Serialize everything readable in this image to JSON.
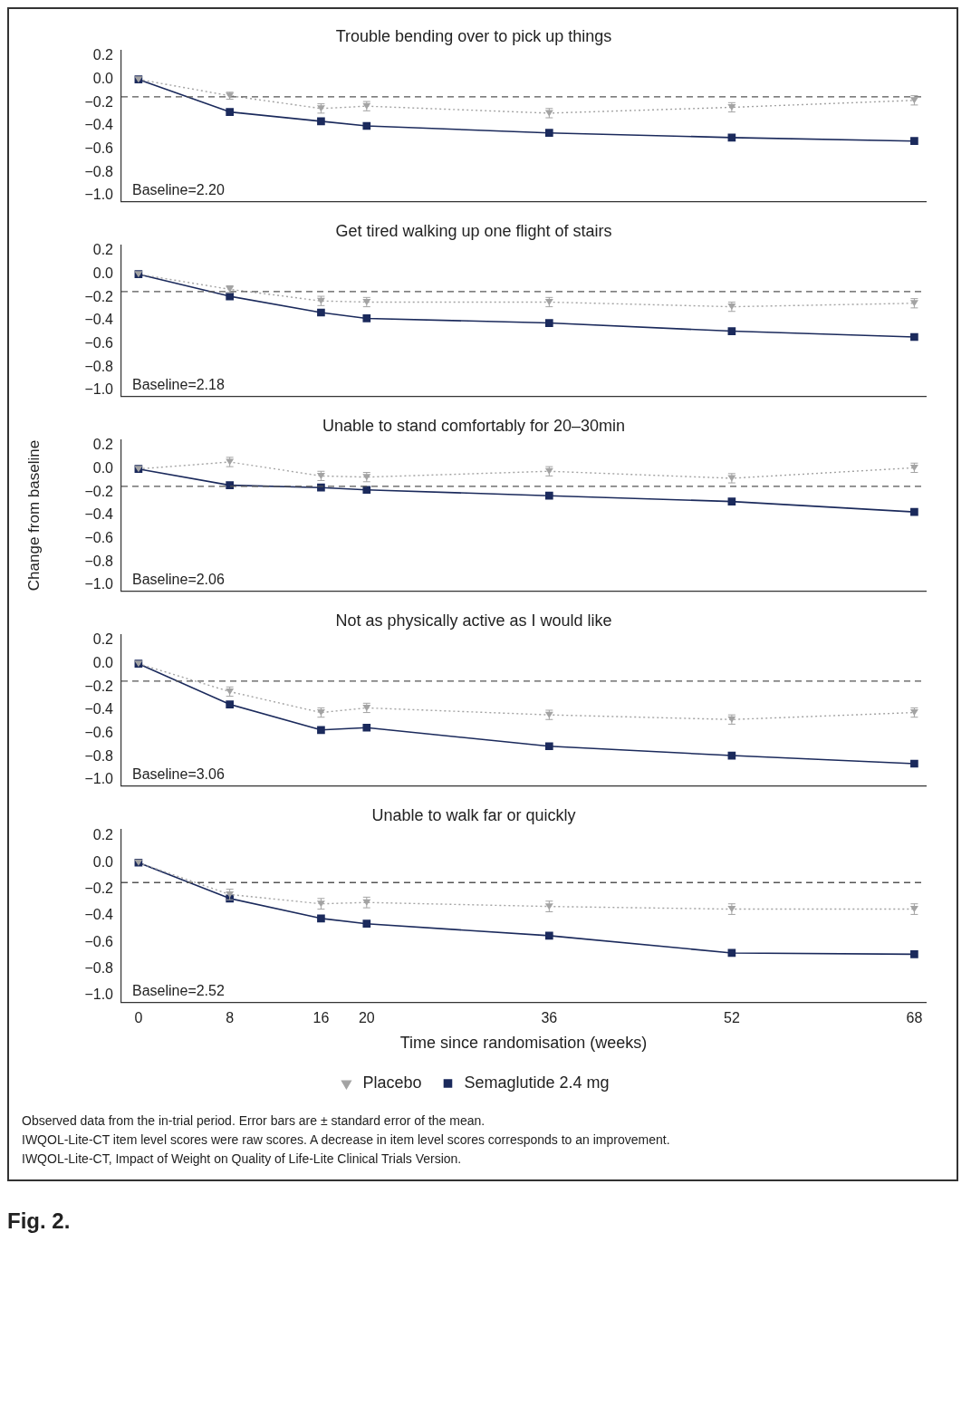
{
  "chart_data": [
    {
      "type": "line",
      "title": "Trouble bending over to pick up things",
      "x": [
        0,
        8,
        16,
        20,
        36,
        52,
        68
      ],
      "xlim": [
        -1.5,
        69
      ],
      "xticks": [
        0,
        8,
        16,
        20,
        36,
        52,
        68
      ],
      "ylim": [
        -1.05,
        0.25
      ],
      "yticks": [
        {
          "value": 0.2,
          "label": "0.2"
        },
        {
          "value": 0,
          "label": "0.0"
        },
        {
          "value": -0.2,
          "label": "−0.2"
        },
        {
          "value": -0.4,
          "label": "−0.4"
        },
        {
          "value": -0.6,
          "label": "−0.6"
        },
        {
          "value": -0.8,
          "label": "−0.8"
        },
        {
          "value": -1,
          "label": "−1.0"
        }
      ],
      "tick_labels": "y",
      "grid": false,
      "legend": false,
      "series": [
        {
          "color": "#a3a3a3",
          "marker": "triangle",
          "line_style": "dotted",
          "values": [
            0,
            -0.14,
            -0.25,
            -0.23,
            -0.29,
            -0.24,
            -0.18
          ],
          "errors": [
            null,
            0.03,
            0.04,
            0.04,
            0.04,
            0.04,
            0.04
          ]
        },
        {
          "color": "#1b2a5c",
          "marker": "square",
          "line_style": "solid",
          "values": [
            0,
            -0.28,
            -0.36,
            -0.4,
            -0.46,
            -0.5,
            -0.53
          ]
        }
      ],
      "ref_lines": [
        {
          "axis": "y",
          "value": -0.15,
          "color": "#555555",
          "line_style": "dashed"
        }
      ],
      "annotations": [
        "Baseline=2.20"
      ]
    },
    {
      "type": "line",
      "title": "Get tired walking up one flight of stairs",
      "x": [
        0,
        8,
        16,
        20,
        36,
        52,
        68
      ],
      "xlim": [
        -1.5,
        69
      ],
      "xticks": [
        0,
        8,
        16,
        20,
        36,
        52,
        68
      ],
      "ylim": [
        -1.05,
        0.25
      ],
      "yticks": [
        {
          "value": 0.2,
          "label": "0.2"
        },
        {
          "value": 0,
          "label": "0.0"
        },
        {
          "value": -0.2,
          "label": "−0.2"
        },
        {
          "value": -0.4,
          "label": "−0.4"
        },
        {
          "value": -0.6,
          "label": "−0.6"
        },
        {
          "value": -0.8,
          "label": "−0.8"
        },
        {
          "value": -1,
          "label": "−1.0"
        }
      ],
      "tick_labels": "y",
      "grid": false,
      "legend": false,
      "series": [
        {
          "color": "#a3a3a3",
          "marker": "triangle",
          "line_style": "dotted",
          "values": [
            0,
            -0.13,
            -0.23,
            -0.24,
            -0.24,
            -0.28,
            -0.25
          ],
          "errors": [
            null,
            0.03,
            0.04,
            0.04,
            0.04,
            0.04,
            0.04
          ]
        },
        {
          "color": "#1b2a5c",
          "marker": "square",
          "line_style": "solid",
          "values": [
            0,
            -0.19,
            -0.33,
            -0.38,
            -0.42,
            -0.49,
            -0.54
          ]
        }
      ],
      "ref_lines": [
        {
          "axis": "y",
          "value": -0.15,
          "color": "#555555",
          "line_style": "dashed"
        }
      ],
      "annotations": [
        "Baseline=2.18"
      ]
    },
    {
      "type": "line",
      "title": "Unable to stand comfortably for 20–30min",
      "ylabel": "Change from baseline",
      "x": [
        0,
        8,
        16,
        20,
        36,
        52,
        68
      ],
      "xlim": [
        -1.5,
        69
      ],
      "xticks": [
        0,
        8,
        16,
        20,
        36,
        52,
        68
      ],
      "ylim": [
        -1.05,
        0.25
      ],
      "yticks": [
        {
          "value": 0.2,
          "label": "0.2"
        },
        {
          "value": 0,
          "label": "0.0"
        },
        {
          "value": -0.2,
          "label": "−0.2"
        },
        {
          "value": -0.4,
          "label": "−0.4"
        },
        {
          "value": -0.6,
          "label": "−0.6"
        },
        {
          "value": -0.8,
          "label": "−0.8"
        },
        {
          "value": -1,
          "label": "−1.0"
        }
      ],
      "tick_labels": "y",
      "grid": false,
      "legend": false,
      "series": [
        {
          "color": "#a3a3a3",
          "marker": "triangle",
          "line_style": "dotted",
          "values": [
            0,
            0.06,
            -0.06,
            -0.07,
            -0.02,
            -0.08,
            0.01
          ],
          "errors": [
            null,
            0.04,
            0.04,
            0.04,
            0.04,
            0.04,
            0.04
          ]
        },
        {
          "color": "#1b2a5c",
          "marker": "square",
          "line_style": "solid",
          "values": [
            0,
            -0.14,
            -0.16,
            -0.18,
            -0.23,
            -0.28,
            -0.37
          ]
        }
      ],
      "ref_lines": [
        {
          "axis": "y",
          "value": -0.15,
          "color": "#555555",
          "line_style": "dashed"
        }
      ],
      "annotations": [
        "Baseline=2.06"
      ]
    },
    {
      "type": "line",
      "title": "Not as physically active as I would like",
      "x": [
        0,
        8,
        16,
        20,
        36,
        52,
        68
      ],
      "xlim": [
        -1.5,
        69
      ],
      "xticks": [
        0,
        8,
        16,
        20,
        36,
        52,
        68
      ],
      "ylim": [
        -1.05,
        0.25
      ],
      "yticks": [
        {
          "value": 0.2,
          "label": "0.2"
        },
        {
          "value": 0,
          "label": "0.0"
        },
        {
          "value": -0.2,
          "label": "−0.2"
        },
        {
          "value": -0.4,
          "label": "−0.4"
        },
        {
          "value": -0.6,
          "label": "−0.6"
        },
        {
          "value": -0.8,
          "label": "−0.8"
        },
        {
          "value": -1,
          "label": "−1.0"
        }
      ],
      "tick_labels": "y",
      "grid": false,
      "legend": false,
      "series": [
        {
          "color": "#a3a3a3",
          "marker": "triangle",
          "line_style": "dotted",
          "values": [
            0,
            -0.24,
            -0.42,
            -0.38,
            -0.44,
            -0.48,
            -0.42
          ],
          "errors": [
            null,
            0.04,
            0.04,
            0.04,
            0.04,
            0.04,
            0.04
          ]
        },
        {
          "color": "#1b2a5c",
          "marker": "square",
          "line_style": "solid",
          "values": [
            0,
            -0.35,
            -0.57,
            -0.55,
            -0.71,
            -0.79,
            -0.86
          ]
        }
      ],
      "ref_lines": [
        {
          "axis": "y",
          "value": -0.15,
          "color": "#555555",
          "line_style": "dashed"
        }
      ],
      "annotations": [
        "Baseline=3.06"
      ]
    },
    {
      "type": "line",
      "title": "Unable to walk far or quickly",
      "xlabel": "Time since randomisation (weeks)",
      "x": [
        0,
        8,
        16,
        20,
        36,
        52,
        68
      ],
      "xlim": [
        -1.5,
        69
      ],
      "xticks": [
        0,
        8,
        16,
        20,
        36,
        52,
        68
      ],
      "ylim": [
        -1.05,
        0.25
      ],
      "yticks": [
        {
          "value": 0.2,
          "label": "0.2"
        },
        {
          "value": 0,
          "label": "0.0"
        },
        {
          "value": -0.2,
          "label": "−0.2"
        },
        {
          "value": -0.4,
          "label": "−0.4"
        },
        {
          "value": -0.6,
          "label": "−0.6"
        },
        {
          "value": -0.8,
          "label": "−0.8"
        },
        {
          "value": -1,
          "label": "−1.0"
        }
      ],
      "grid": false,
      "legend": "bottom",
      "series": [
        {
          "name": "Placebo",
          "color": "#a3a3a3",
          "marker": "triangle",
          "line_style": "dotted",
          "values": [
            0,
            -0.24,
            -0.31,
            -0.3,
            -0.33,
            -0.35,
            -0.35
          ],
          "errors": [
            null,
            0.04,
            0.04,
            0.04,
            0.04,
            0.04,
            0.04
          ]
        },
        {
          "name": "Semaglutide 2.4 mg",
          "color": "#1b2a5c",
          "marker": "square",
          "line_style": "solid",
          "values": [
            0,
            -0.27,
            -0.42,
            -0.46,
            -0.55,
            -0.68,
            -0.69
          ]
        }
      ],
      "ref_lines": [
        {
          "axis": "y",
          "value": -0.15,
          "color": "#555555",
          "line_style": "dashed"
        }
      ],
      "annotations": [
        "Baseline=2.52",
        "Observed data from the in-trial period. Error bars are ± standard error of the mean.",
        "IWQOL-Lite-CT item level scores were raw scores. A decrease in item level scores corresponds to an improvement.",
        "IWQOL-Lite-CT, Impact of Weight on Quality of Life-Lite Clinical Trials Version.",
        "Fig. 2."
      ]
    }
  ]
}
